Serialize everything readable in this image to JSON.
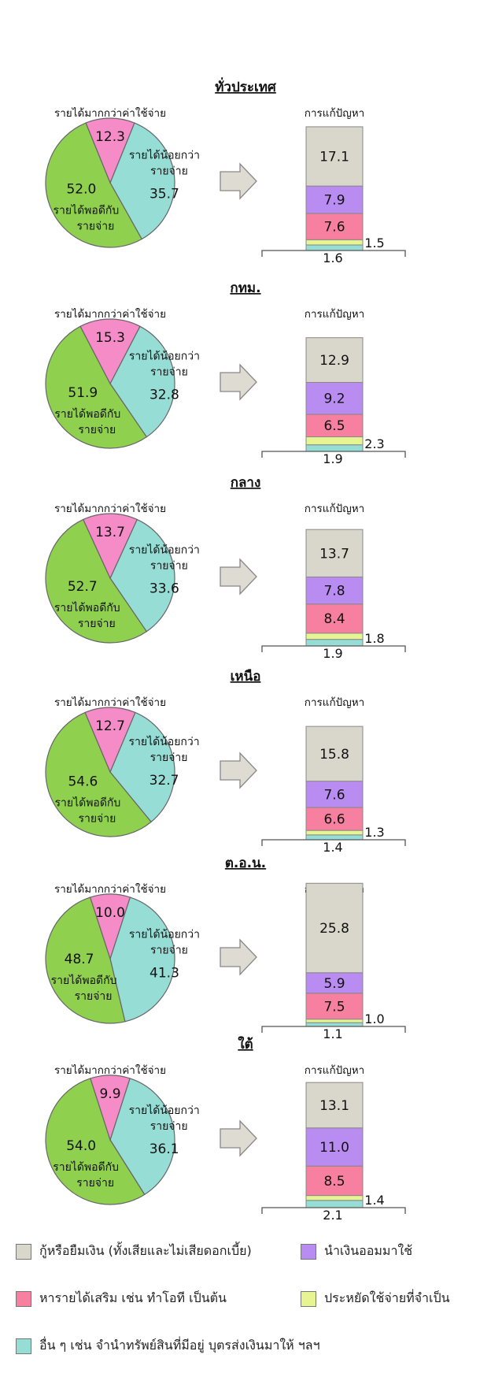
{
  "colors": {
    "slice_more": "#f58cc8",
    "slice_less": "#96ddd6",
    "slice_equal": "#8fd14f",
    "borrow": "#d9d6cc",
    "savings": "#b98cf2",
    "extra_income": "#f77f9f",
    "reduce": "#e6f591",
    "other": "#96ddd6"
  },
  "pie_labels": {
    "more": "รายได้มากกว่าค่าใช้จ่าย",
    "less_line1": "รายได้น้อยกว่า",
    "less_line2": "รายจ่าย",
    "equal_line1": "รายได้พอดีกับ",
    "equal_line2": "รายจ่าย"
  },
  "bar_title": "การแก้ปัญหา",
  "legend": [
    {
      "key": "borrow",
      "label": "กู้หรือยืมเงิน (ทั้งเสียและไม่เสียดอกเบี้ย)"
    },
    {
      "key": "savings",
      "label": "นำเงินออมมาใช้"
    },
    {
      "key": "extra_income",
      "label": "หารายได้เสริม เช่น ทำโอที เป็นต้น"
    },
    {
      "key": "reduce",
      "label": "ประหยัดใช้จ่ายที่จำเป็น"
    },
    {
      "key": "other",
      "label": "อื่น ๆ เช่น จำนำทรัพย์สินที่มีอยู่ บุตรส่งเงินมาให้ ฯลฯ"
    }
  ],
  "chart_data": [
    {
      "type": "pie",
      "title": "ทั่วประเทศ",
      "pie": {
        "more": 12.3,
        "less": 35.7,
        "equal": 52.0
      },
      "bar": {
        "type": "stacked-bar",
        "title": "การแก้ปัญหา",
        "other": 1.6,
        "reduce": 1.5,
        "extra_income": 7.6,
        "savings": 7.9,
        "borrow": 17.1
      }
    },
    {
      "type": "pie",
      "title": "กทม.",
      "pie": {
        "more": 15.3,
        "less": 32.8,
        "equal": 51.9
      },
      "bar": {
        "type": "stacked-bar",
        "title": "การแก้ปัญหา",
        "other": 1.9,
        "reduce": 2.3,
        "extra_income": 6.5,
        "savings": 9.2,
        "borrow": 12.9
      }
    },
    {
      "type": "pie",
      "title": "กลาง",
      "pie": {
        "more": 13.7,
        "less": 33.6,
        "equal": 52.7
      },
      "bar": {
        "type": "stacked-bar",
        "title": "การแก้ปัญหา",
        "other": 1.9,
        "reduce": 1.8,
        "extra_income": 8.4,
        "savings": 7.8,
        "borrow": 13.7
      }
    },
    {
      "type": "pie",
      "title": "เหนือ",
      "pie": {
        "more": 12.7,
        "less": 32.7,
        "equal": 54.6
      },
      "bar": {
        "type": "stacked-bar",
        "title": "การแก้ปัญหา",
        "other": 1.4,
        "reduce": 1.3,
        "extra_income": 6.6,
        "savings": 7.6,
        "borrow": 15.8
      }
    },
    {
      "type": "pie",
      "title": "ต.อ.น.",
      "pie": {
        "more": 10.0,
        "less": 41.3,
        "equal": 48.7
      },
      "bar": {
        "type": "stacked-bar",
        "title": "การแก้ปัญหา",
        "other": 1.1,
        "reduce": 1.0,
        "extra_income": 7.5,
        "savings": 5.9,
        "borrow": 25.8
      }
    },
    {
      "type": "pie",
      "title": "ใต้",
      "pie": {
        "more": 9.9,
        "less": 36.1,
        "equal": 54.0
      },
      "bar": {
        "type": "stacked-bar",
        "title": "การแก้ปัญหา",
        "other": 2.1,
        "reduce": 1.4,
        "extra_income": 8.5,
        "savings": 11.0,
        "borrow": 13.1
      }
    }
  ]
}
